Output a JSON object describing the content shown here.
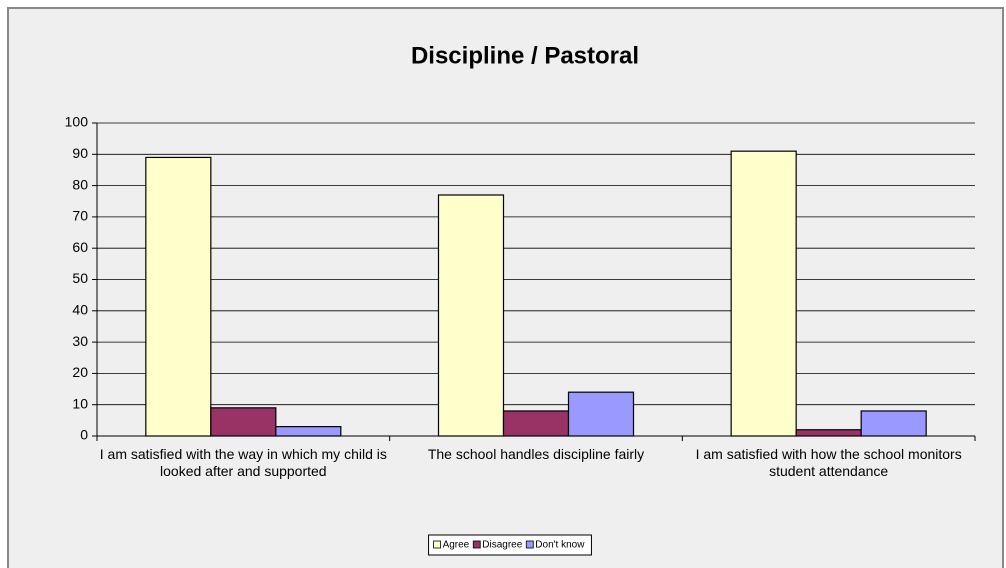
{
  "chart_data": {
    "type": "bar",
    "title": "Discipline / Pastoral",
    "categories": [
      "I am satisfied with the way in which my child is looked after and supported",
      "The school handles discipline fairly",
      "I am satisfied with how the school monitors student attendance"
    ],
    "series": [
      {
        "name": "Agree",
        "color": "#ffffcc",
        "values": [
          89,
          77,
          91
        ]
      },
      {
        "name": "Disagree",
        "color": "#993366",
        "values": [
          9,
          8,
          2
        ]
      },
      {
        "name": "Don't know",
        "color": "#9999ff",
        "values": [
          3,
          14,
          8
        ]
      }
    ],
    "ylim": [
      0,
      100
    ],
    "yticks": [
      0,
      10,
      20,
      30,
      40,
      50,
      60,
      70,
      80,
      90,
      100
    ],
    "grid": true,
    "legend": "bottom"
  }
}
